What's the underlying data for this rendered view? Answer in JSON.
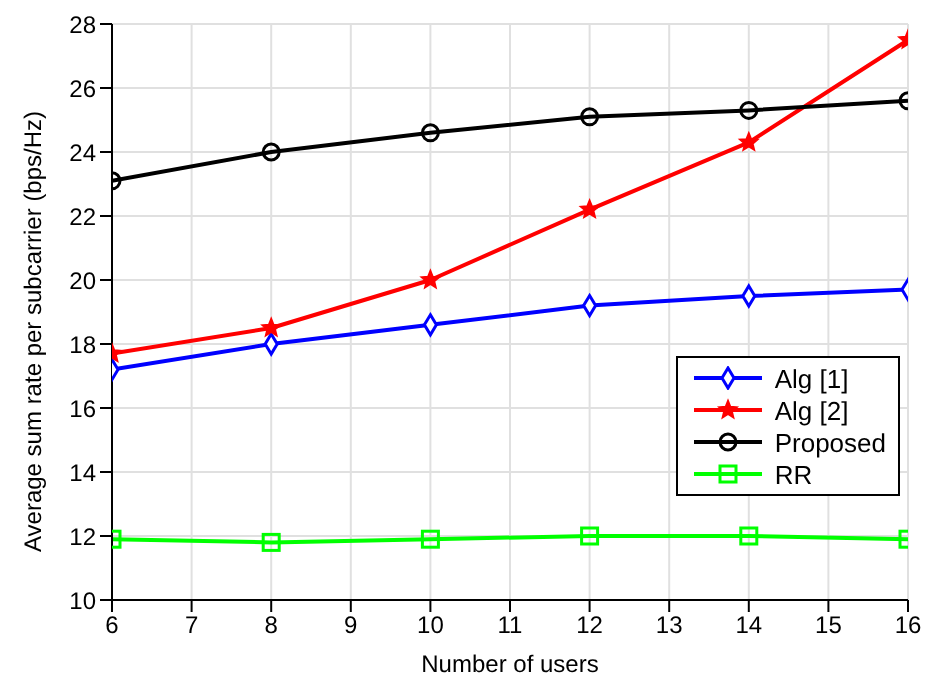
{
  "chart_data": {
    "type": "line",
    "xlabel": "Number of users",
    "ylabel": "Average sum rate per subcarrier (bps/Hz)",
    "x": [
      6,
      8,
      10,
      12,
      14,
      16
    ],
    "series": [
      {
        "name": "Alg [1]",
        "color": "#0000ff",
        "marker": "diamond",
        "values": [
          17.2,
          18.0,
          18.6,
          19.2,
          19.5,
          19.7
        ]
      },
      {
        "name": "Alg [2]",
        "color": "#ff0000",
        "marker": "star",
        "values": [
          17.7,
          18.5,
          20.0,
          22.2,
          24.3,
          27.5
        ]
      },
      {
        "name": "Proposed",
        "color": "#000000",
        "marker": "circle",
        "values": [
          23.1,
          24.0,
          24.6,
          25.1,
          25.3,
          25.6
        ]
      },
      {
        "name": "RR",
        "color": "#00ff00",
        "marker": "square",
        "values": [
          11.9,
          11.8,
          11.9,
          12.0,
          12.0,
          11.9
        ]
      }
    ],
    "xlim": [
      6,
      16
    ],
    "xticks": [
      6,
      7,
      8,
      9,
      10,
      11,
      12,
      13,
      14,
      15,
      16
    ],
    "ylim": [
      10,
      28
    ],
    "yticks": [
      10,
      12,
      14,
      16,
      18,
      20,
      22,
      24,
      26,
      28
    ],
    "grid": true,
    "legend": "right",
    "line_style": "solid"
  }
}
